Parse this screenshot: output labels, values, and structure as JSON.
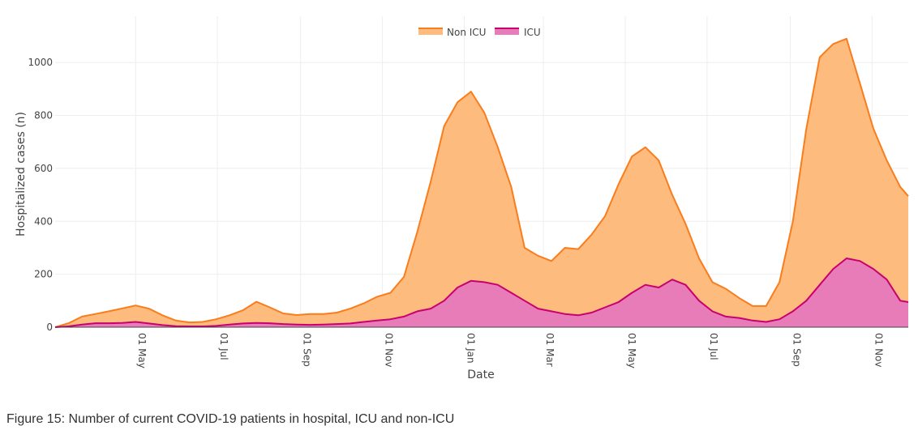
{
  "caption": "Figure 15: Number of current COVID-19 patients in hospital, ICU and non-ICU",
  "chart_data": {
    "type": "area",
    "stacked": true,
    "xlabel": "Date",
    "ylabel": "Hospitalized cases (n)",
    "x_range": [
      "2020-03-02",
      "2021-11-28"
    ],
    "ylim": [
      0,
      1175
    ],
    "y_ticks": [
      0,
      200,
      400,
      600,
      800,
      1000
    ],
    "x_ticks": [
      {
        "date": "2020-05-01",
        "label": "01 May"
      },
      {
        "date": "2020-07-01",
        "label": "01 Jul"
      },
      {
        "date": "2020-09-01",
        "label": "01 Sep"
      },
      {
        "date": "2020-11-01",
        "label": "01 Nov"
      },
      {
        "date": "2021-01-01",
        "label": "01 Jan"
      },
      {
        "date": "2021-03-01",
        "label": "01 Mar"
      },
      {
        "date": "2021-05-01",
        "label": "01 May"
      },
      {
        "date": "2021-07-01",
        "label": "01 Jul"
      },
      {
        "date": "2021-09-01",
        "label": "01 Sep"
      },
      {
        "date": "2021-11-01",
        "label": "01 Nov"
      }
    ],
    "grid": true,
    "legend_position": "top-center",
    "colors": {
      "non_icu_fill": "#fdbb7e",
      "non_icu_line": "#f97d1c",
      "icu_fill": "#e77cb8",
      "icu_line": "#c9006f"
    },
    "series": [
      {
        "name": "ICU",
        "x": [
          "2020-03-02",
          "2020-03-12",
          "2020-03-22",
          "2020-04-01",
          "2020-04-11",
          "2020-04-21",
          "2020-05-01",
          "2020-05-11",
          "2020-05-21",
          "2020-05-31",
          "2020-06-10",
          "2020-06-20",
          "2020-06-30",
          "2020-07-10",
          "2020-07-20",
          "2020-07-30",
          "2020-08-09",
          "2020-08-19",
          "2020-08-29",
          "2020-09-08",
          "2020-09-18",
          "2020-09-28",
          "2020-10-08",
          "2020-10-18",
          "2020-10-28",
          "2020-11-07",
          "2020-11-17",
          "2020-11-27",
          "2020-12-07",
          "2020-12-17",
          "2020-12-27",
          "2021-01-06",
          "2021-01-16",
          "2021-01-26",
          "2021-02-05",
          "2021-02-15",
          "2021-02-25",
          "2021-03-07",
          "2021-03-17",
          "2021-03-27",
          "2021-04-06",
          "2021-04-16",
          "2021-04-26",
          "2021-05-06",
          "2021-05-16",
          "2021-05-26",
          "2021-06-05",
          "2021-06-15",
          "2021-06-25",
          "2021-07-05",
          "2021-07-15",
          "2021-07-25",
          "2021-08-04",
          "2021-08-14",
          "2021-08-24",
          "2021-09-03",
          "2021-09-13",
          "2021-09-23",
          "2021-10-03",
          "2021-10-13",
          "2021-10-23",
          "2021-11-02",
          "2021-11-12",
          "2021-11-22",
          "2021-11-28"
        ],
        "values": [
          0,
          3,
          10,
          15,
          15,
          16,
          20,
          14,
          8,
          4,
          3,
          3,
          5,
          10,
          14,
          16,
          15,
          12,
          10,
          9,
          10,
          12,
          14,
          20,
          25,
          30,
          40,
          60,
          70,
          100,
          150,
          175,
          170,
          160,
          130,
          100,
          70,
          60,
          50,
          45,
          55,
          75,
          95,
          130,
          160,
          150,
          180,
          160,
          100,
          60,
          40,
          35,
          25,
          20,
          30,
          60,
          100,
          160,
          220,
          260,
          250,
          220,
          180,
          100,
          95
        ]
      },
      {
        "name": "Non ICU",
        "x": [
          "2020-03-02",
          "2020-03-12",
          "2020-03-22",
          "2020-04-01",
          "2020-04-11",
          "2020-04-21",
          "2020-05-01",
          "2020-05-11",
          "2020-05-21",
          "2020-05-31",
          "2020-06-10",
          "2020-06-20",
          "2020-06-30",
          "2020-07-10",
          "2020-07-20",
          "2020-07-30",
          "2020-08-09",
          "2020-08-19",
          "2020-08-29",
          "2020-09-08",
          "2020-09-18",
          "2020-09-28",
          "2020-10-08",
          "2020-10-18",
          "2020-10-28",
          "2020-11-07",
          "2020-11-17",
          "2020-11-27",
          "2020-12-07",
          "2020-12-17",
          "2020-12-27",
          "2021-01-06",
          "2021-01-16",
          "2021-01-26",
          "2021-02-05",
          "2021-02-15",
          "2021-02-25",
          "2021-03-07",
          "2021-03-17",
          "2021-03-27",
          "2021-04-06",
          "2021-04-16",
          "2021-04-26",
          "2021-05-06",
          "2021-05-16",
          "2021-05-26",
          "2021-06-05",
          "2021-06-15",
          "2021-06-25",
          "2021-07-05",
          "2021-07-15",
          "2021-07-25",
          "2021-08-04",
          "2021-08-14",
          "2021-08-24",
          "2021-09-03",
          "2021-09-13",
          "2021-09-23",
          "2021-10-03",
          "2021-10-13",
          "2021-10-23",
          "2021-11-02",
          "2021-11-12",
          "2021-11-22",
          "2021-11-28"
        ],
        "values": [
          0,
          12,
          30,
          35,
          45,
          55,
          62,
          56,
          37,
          21,
          15,
          17,
          25,
          35,
          50,
          80,
          60,
          40,
          36,
          41,
          40,
          43,
          56,
          70,
          90,
          100,
          150,
          300,
          480,
          660,
          700,
          715,
          640,
          520,
          400,
          200,
          200,
          190,
          250,
          250,
          295,
          345,
          445,
          515,
          520,
          480,
          320,
          230,
          160,
          110,
          105,
          75,
          55,
          60,
          140,
          340,
          650,
          860,
          850,
          830,
          670,
          530,
          450,
          430,
          400
        ]
      }
    ]
  }
}
